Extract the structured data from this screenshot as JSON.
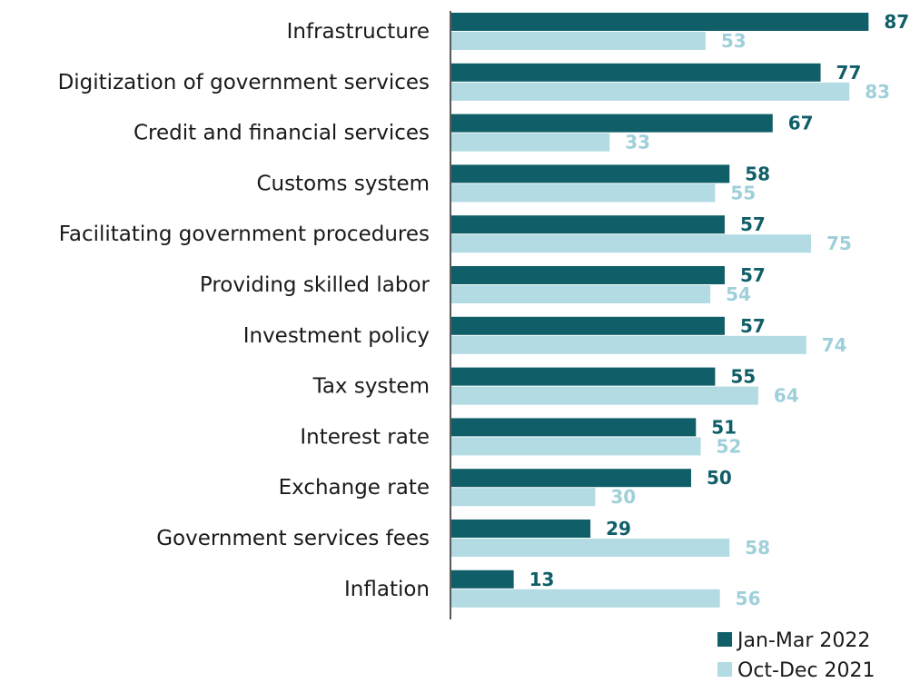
{
  "chart_data": {
    "type": "bar",
    "orientation": "horizontal",
    "categories": [
      "Infrastructure",
      "Digitization of government services",
      "Credit and financial services",
      "Customs system",
      "Facilitating government procedures",
      "Providing skilled labor",
      "Investment policy",
      "Tax system",
      "Interest rate",
      "Exchange rate",
      "Government services fees",
      "Inflation"
    ],
    "series": [
      {
        "name": "Jan-Mar 2022",
        "color": "#0f5e68",
        "values": [
          87,
          77,
          67,
          58,
          57,
          57,
          57,
          55,
          51,
          50,
          29,
          13
        ]
      },
      {
        "name": "Oct-Dec 2021",
        "color": "#b2dbe3",
        "values": [
          53,
          83,
          33,
          55,
          75,
          54,
          74,
          64,
          52,
          30,
          58,
          56
        ]
      }
    ],
    "data_labels": true,
    "legend": "bottom-right",
    "grid": false,
    "xlim": [
      0,
      100
    ]
  }
}
